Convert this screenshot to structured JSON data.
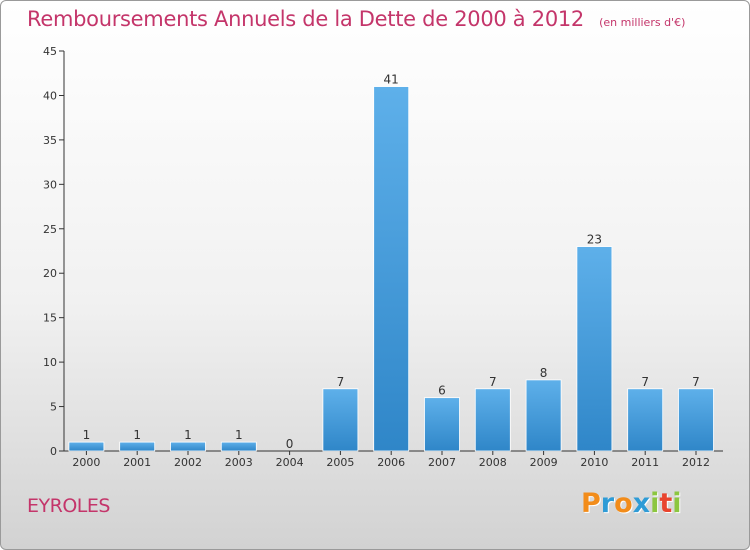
{
  "header": {
    "title": "Remboursements Annuels de la Dette de 2000 à 2012",
    "subtitle": "(en milliers d'€)"
  },
  "footer": {
    "commune": "EYROLES",
    "brand": {
      "letters": [
        "P",
        "r",
        "o",
        "x",
        "i",
        "t",
        "i"
      ],
      "colors": [
        "#f28c1a",
        "#2e9bd6",
        "#f28c1a",
        "#2e9bd6",
        "#8cc63f",
        "#e8442e",
        "#8cc63f"
      ]
    }
  },
  "chart_data": {
    "type": "bar",
    "title": "Remboursements Annuels de la Dette de 2000 à 2012",
    "subtitle": "(en milliers d'€)",
    "xlabel": "",
    "ylabel": "",
    "categories": [
      "2000",
      "2001",
      "2002",
      "2003",
      "2004",
      "2005",
      "2006",
      "2007",
      "2008",
      "2009",
      "2010",
      "2011",
      "2012"
    ],
    "values": [
      1,
      1,
      1,
      1,
      0,
      7,
      41,
      6,
      7,
      8,
      23,
      7,
      7
    ],
    "data_labels": [
      "1",
      "1",
      "1",
      "1",
      "0",
      "7",
      "41",
      "6",
      "7",
      "8",
      "23",
      "7",
      "7"
    ],
    "ylim": [
      0,
      45
    ],
    "yticks": [
      0,
      5,
      10,
      15,
      20,
      25,
      30,
      35,
      40,
      45
    ],
    "grid": false,
    "legend": "none",
    "colors": {
      "bar_light": "#5eb0ea",
      "bar_dark": "#2f86c8",
      "axis": "#333333",
      "text": "#333333"
    }
  }
}
